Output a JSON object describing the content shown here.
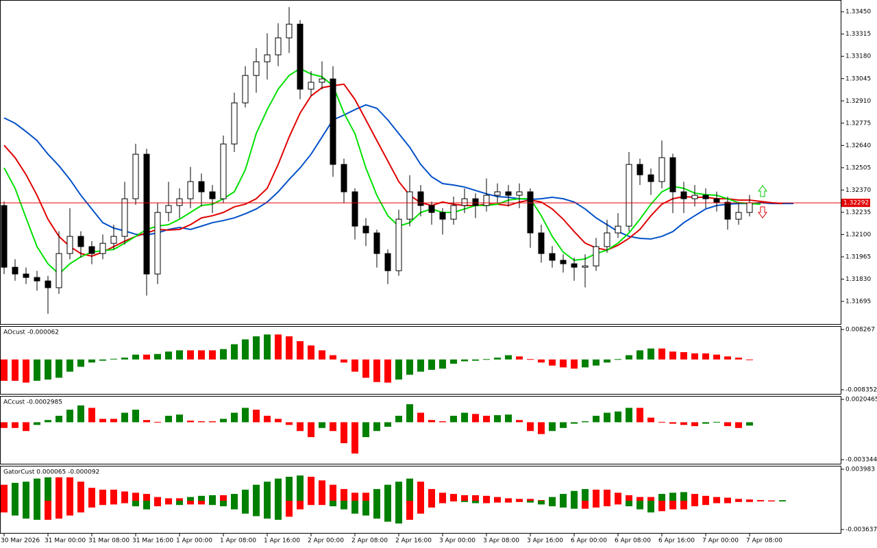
{
  "chart_data": [
    {
      "type": "candlestick",
      "categories": [
        "30 Mar 2026",
        null,
        null,
        null,
        "31 Mar 00:00",
        null,
        null,
        null,
        "31 Mar 08:00",
        null,
        null,
        null,
        "31 Mar 16:00",
        null,
        null,
        null,
        "1 Apr 00:00",
        null,
        null,
        null,
        "1 Apr 08:00",
        null,
        null,
        null,
        "1 Apr 16:00",
        null,
        null,
        null,
        "2 Apr 00:00",
        null,
        null,
        null,
        "2 Apr 08:00",
        null,
        null,
        null,
        "2 Apr 16:00",
        null,
        null,
        null,
        "3 Apr 00:00",
        null,
        null,
        null,
        "3 Apr 08:00",
        null,
        null,
        null,
        "3 Apr 16:00",
        null,
        null,
        null,
        "6 Apr 00:00",
        null,
        null,
        null,
        "6 Apr 08:00",
        null,
        null,
        null,
        "6 Apr 16:00",
        null,
        null,
        null,
        "7 Apr 00:00",
        null,
        null,
        null,
        "7 Apr 08:00",
        null,
        null,
        null,
        null
      ],
      "open": [
        1.32276,
        1.31902,
        1.31861,
        1.3184,
        1.31819,
        1.31778,
        1.31985,
        1.32089,
        1.32027,
        1.31985,
        1.32047,
        1.32089,
        1.32317,
        1.32587,
        1.31861,
        1.32234,
        1.32276,
        1.32317,
        1.32421,
        1.32359,
        1.32317,
        1.32649,
        1.32898,
        1.33064,
        1.33147,
        1.33189,
        1.33292,
        1.33375,
        1.32981,
        1.33023,
        1.33043,
        1.32525,
        1.32359,
        1.32151,
        1.3211,
        1.31985,
        1.31881,
        1.32193,
        1.32359,
        1.32276,
        1.32234,
        1.32193,
        1.32276,
        1.32317,
        1.32276,
        1.32338,
        1.32359,
        1.32338,
        1.32359,
        1.3211,
        1.31985,
        1.31944,
        1.31923,
        1.31902,
        1.3191,
        1.32027,
        1.3211,
        1.32151,
        1.32525,
        1.32462,
        1.32421,
        1.32566,
        1.32359,
        1.32317,
        1.32338,
        1.32317,
        1.32296,
        1.32193,
        1.32234,
        null,
        null,
        null,
        null
      ],
      "high": [
        1.323,
        1.3195,
        1.319,
        1.3188,
        1.3185,
        1.3212,
        1.3226,
        1.3212,
        1.3206,
        1.321,
        1.3216,
        1.3242,
        1.3265,
        1.3262,
        1.3229,
        1.3242,
        1.3238,
        1.3251,
        1.3247,
        1.324,
        1.327,
        1.3296,
        1.3312,
        1.3323,
        1.3332,
        1.3338,
        1.33479,
        1.334,
        1.3309,
        1.3315,
        1.3312,
        1.3256,
        1.3238,
        1.322,
        1.3213,
        1.3201,
        1.3225,
        1.3246,
        1.324,
        1.323,
        1.3226,
        1.3233,
        1.3238,
        1.3235,
        1.3244,
        1.3241,
        1.324,
        1.3241,
        1.3238,
        1.3216,
        1.3203,
        1.3198,
        1.3196,
        1.3198,
        1.3208,
        1.3219,
        1.3223,
        1.326,
        1.3256,
        1.325,
        1.3267,
        1.3259,
        1.3242,
        1.324,
        1.3238,
        1.3236,
        1.3233,
        1.3229,
        1.3234,
        null,
        null,
        null,
        null
      ],
      "low": [
        1.3186,
        1.3182,
        1.318,
        1.3176,
        1.3162,
        1.3174,
        1.3195,
        1.3196,
        1.3192,
        1.3195,
        1.3201,
        1.3204,
        1.3228,
        1.3173,
        1.318,
        1.3218,
        1.322,
        1.3226,
        1.3227,
        1.3223,
        1.3229,
        1.326,
        1.3287,
        1.3296,
        1.3304,
        1.3312,
        1.332,
        1.3292,
        1.3294,
        1.3298,
        1.3245,
        1.3229,
        1.3207,
        1.3203,
        1.319,
        1.318,
        1.3185,
        1.3215,
        1.3221,
        1.3216,
        1.321,
        1.3216,
        1.3223,
        1.322,
        1.3224,
        1.3229,
        1.3227,
        1.3226,
        1.3202,
        1.3193,
        1.319,
        1.3187,
        1.3182,
        1.3178,
        1.3188,
        1.3199,
        1.3208,
        1.3212,
        1.324,
        1.3234,
        1.3238,
        1.3223,
        1.3223,
        1.3227,
        1.3226,
        1.3224,
        1.3213,
        1.3216,
        1.3221,
        null,
        null,
        null,
        null
      ],
      "close": [
        1.31902,
        1.31861,
        1.3184,
        1.31819,
        1.31778,
        1.31985,
        1.32089,
        1.32027,
        1.31985,
        1.32047,
        1.32089,
        1.32317,
        1.32587,
        1.31861,
        1.32234,
        1.32276,
        1.32317,
        1.32421,
        1.32359,
        1.32317,
        1.32649,
        1.32898,
        1.33064,
        1.33147,
        1.33189,
        1.33292,
        1.33375,
        1.32981,
        1.33023,
        1.33043,
        1.32525,
        1.32359,
        1.32151,
        1.3211,
        1.31985,
        1.31881,
        1.32193,
        1.32359,
        1.32276,
        1.32234,
        1.32193,
        1.32276,
        1.32317,
        1.32276,
        1.32338,
        1.32359,
        1.32338,
        1.32359,
        1.3211,
        1.31985,
        1.31944,
        1.31923,
        1.31902,
        1.3191,
        1.32027,
        1.3211,
        1.32151,
        1.32525,
        1.32462,
        1.32421,
        1.32566,
        1.32359,
        1.32317,
        1.32338,
        1.32317,
        1.32296,
        1.32193,
        1.32234,
        1.32292,
        null,
        null,
        null,
        null
      ],
      "bull_color": "#ffffff",
      "bear_color": "#000000",
      "series": [
        {
          "color": "#0050c8",
          "values": [
            1.32807,
            1.32774,
            1.32724,
            1.3267,
            1.32587,
            1.32517,
            1.32434,
            1.32338,
            1.32255,
            1.32172,
            1.32139,
            1.32122,
            1.32102,
            1.32098,
            1.3211,
            1.32131,
            1.32143,
            1.32131,
            1.32151,
            1.32172,
            1.32185,
            1.32201,
            1.32226,
            1.32255,
            1.32297,
            1.32359,
            1.32434,
            1.32504,
            1.32587,
            1.32691,
            1.32795,
            1.32824,
            1.32857,
            1.32886,
            1.32865,
            1.32795,
            1.32712,
            1.32629,
            1.32525,
            1.3245,
            1.32409,
            1.324,
            1.32388,
            1.32367,
            1.32347,
            1.3233,
            1.32326,
            1.32317,
            1.32313,
            1.32317,
            1.32326,
            1.32317,
            1.32297,
            1.32255,
            1.32201,
            1.3216,
            1.32118,
            1.32089,
            1.32077,
            1.32073,
            1.32089,
            1.32118,
            1.32172,
            1.32214,
            1.32255,
            1.32276,
            1.32284,
            1.32288,
            1.32288,
            1.32293,
            1.32288,
            1.32288,
            1.32288
          ]
        },
        {
          "color": "#e00000",
          "values": [
            1.32641,
            1.32566,
            1.32463,
            1.32338,
            1.32193,
            1.32089,
            1.32027,
            1.31985,
            1.31969,
            1.31994,
            1.32027,
            1.3206,
            1.32089,
            1.3211,
            1.32131,
            1.32127,
            1.32131,
            1.3216,
            1.32201,
            1.32214,
            1.32234,
            1.32268,
            1.32284,
            1.32317,
            1.3238,
            1.32525,
            1.32691,
            1.32836,
            1.3294,
            1.3299,
            1.33002,
            1.33011,
            1.32919,
            1.32795,
            1.3267,
            1.32546,
            1.32421,
            1.32338,
            1.32293,
            1.32276,
            1.32297,
            1.32284,
            1.32276,
            1.32276,
            1.32284,
            1.32284,
            1.32276,
            1.32297,
            1.32309,
            1.32297,
            1.32255,
            1.32193,
            1.32118,
            1.32048,
            1.32019,
            1.32006,
            1.32035,
            1.32077,
            1.32131,
            1.32214,
            1.32284,
            1.32317,
            1.3233,
            1.32326,
            1.32326,
            1.32317,
            1.32317,
            1.32309,
            1.32309,
            1.32301,
            1.32293,
            1.32288,
            null
          ]
        },
        {
          "color": "#00e000",
          "values": [
            1.32504,
            1.3238,
            1.32201,
            1.32027,
            1.31923,
            1.31861,
            1.31923,
            1.31965,
            1.31994,
            1.32002,
            1.3201,
            1.32048,
            1.32089,
            1.32131,
            1.32151,
            1.3216,
            1.32193,
            1.32234,
            1.32276,
            1.32284,
            1.32317,
            1.32359,
            1.32492,
            1.32712,
            1.32857,
            1.32981,
            1.33064,
            1.33106,
            1.33073,
            1.33056,
            1.33002,
            1.32836,
            1.32712,
            1.32504,
            1.32338,
            1.32214,
            1.32151,
            1.32172,
            1.32234,
            1.32255,
            1.32234,
            1.32234,
            1.32255,
            1.32276,
            1.32276,
            1.32284,
            1.32309,
            1.32317,
            1.32317,
            1.32214,
            1.32089,
            1.31994,
            1.31944,
            1.31952,
            1.31985,
            1.32006,
            1.32048,
            1.3211,
            1.32193,
            1.32284,
            1.32359,
            1.32392,
            1.3238,
            1.32351,
            1.32342,
            1.32338,
            1.32317,
            1.32293,
            1.32288,
            1.32284,
            null,
            null,
            null
          ]
        }
      ],
      "last_price": 1.32292,
      "last_price_color": "#e00000",
      "ylim": [
        1.31558,
        1.33513
      ],
      "yticks": [
        {
          "value": 1.3345,
          "label": "1.33450"
        },
        1.33315,
        {
          "value": 1.3318,
          "label": "1.33180"
        },
        1.33045,
        {
          "value": 1.3291,
          "label": "1.32910"
        },
        1.32775,
        {
          "value": 1.3264,
          "label": "1.32640"
        },
        1.32505,
        {
          "value": 1.3237,
          "label": "1.32370"
        },
        1.32235,
        {
          "value": 1.321,
          "label": "1.32100"
        },
        1.31965,
        {
          "value": 1.3183,
          "label": "1.31830"
        },
        1.31695
      ]
    },
    {
      "type": "histogram",
      "title": "AOcust -0.000062",
      "up_color": "#008000",
      "down_color": "#ff0000",
      "values": [
        -0.00588,
        -0.00588,
        -0.00638,
        -0.00588,
        -0.00554,
        -0.00504,
        -0.00336,
        -0.00202,
        -0.00084,
        -0.00034,
        0.0002,
        0.0005,
        0.00134,
        0.00134,
        0.00151,
        0.00218,
        0.00252,
        0.00252,
        0.00252,
        0.00252,
        0.00286,
        0.0042,
        0.00554,
        0.00638,
        0.00689,
        0.00689,
        0.00638,
        0.00504,
        0.00386,
        0.00252,
        0.00118,
        -0.00084,
        -0.00336,
        -0.00504,
        -0.00622,
        -0.00638,
        -0.00554,
        -0.0042,
        -0.00336,
        -0.00286,
        -0.00252,
        -0.00118,
        -0.0005,
        -0.00034,
        0.0001,
        0.0005,
        0.00118,
        0.00084,
        0.0001,
        -0.00084,
        -0.00168,
        -0.00218,
        -0.00252,
        -0.00218,
        -0.00168,
        -0.00084,
        0.0001,
        0.00118,
        0.00252,
        0.00302,
        0.00302,
        0.00218,
        0.00202,
        0.00168,
        0.00168,
        0.00134,
        0.00084,
        0.0005,
        -6e-05
      ],
      "ylim": [
        -0.008352,
        0.008267
      ],
      "yticks": [
        -0.008352,
        0.008267
      ]
    },
    {
      "type": "histogram",
      "title": "ACcust -0.0002985",
      "up_color": "#008000",
      "down_color": "#ff0000",
      "values": [
        -0.000512,
        -0.000512,
        -0.000785,
        -0.00024,
        0.000196,
        0.000578,
        0.001123,
        0.001504,
        0.001286,
        0.000305,
        0.000305,
        0.00085,
        0.001123,
        0.000196,
        3.3e-05,
        0.000578,
        0.000687,
        0.000142,
        8.7e-05,
        8.7e-05,
        0.000305,
        0.00085,
        0.001286,
        0.001123,
        0.000578,
        0.000305,
        -0.00024,
        -0.000785,
        -0.00133,
        -0.000512,
        -0.000785,
        -0.001875,
        -0.0028,
        -0.00133,
        -0.000785,
        -0.000403,
        0.000578,
        0.001613,
        0.00085,
        0.000196,
        8.7e-05,
        0.000578,
        0.00085,
        0.000741,
        0.000578,
        0.000632,
        0.000687,
        0.000196,
        -0.000785,
        -0.001058,
        -0.000785,
        -0.000512,
        -0.000131,
        8.7e-05,
        0.000578,
        0.00085,
        0.000959,
        0.001286,
        0.001286,
        0.000414,
        3.3e-05,
        -0.000131,
        -0.00024,
        -0.000349,
        -0.000131,
        3.3e-05,
        -0.000349,
        -0.000512,
        -0.0002985
      ],
      "ylim": [
        -0.0033442,
        0.0020465
      ],
      "yticks": [
        -0.0033442,
        0.0020465
      ]
    },
    {
      "type": "gator",
      "title": "GatorCust 0.000065 -0.000092",
      "up_color": "#008000",
      "down_color": "#ff0000",
      "upper_values": [
        0.00202,
        0.00226,
        0.00241,
        0.0028,
        0.00296,
        0.00296,
        0.00296,
        0.00241,
        0.00163,
        0.0014,
        0.0014,
        0.00117,
        0.00101,
        0.00086,
        0.00047,
        0.00031,
        0.00031,
        0.00047,
        0.00062,
        0.0007,
        0.0007,
        0.00086,
        0.0014,
        0.00202,
        0.00241,
        0.0028,
        0.00303,
        0.00319,
        0.00303,
        0.00257,
        0.00202,
        0.00148,
        0.00101,
        0.00101,
        0.00148,
        0.00202,
        0.00241,
        0.0028,
        0.00241,
        0.00148,
        0.00101,
        0.00086,
        0.0007,
        0.0007,
        0.00062,
        0.00047,
        0.00031,
        0.00023,
        0.00023,
        8e-05,
        0.00047,
        0.00086,
        0.00124,
        0.00148,
        0.0014,
        0.0014,
        0.00101,
        0.0007,
        0.00047,
        0.00047,
        0.00086,
        0.00101,
        0.00109,
        0.00086,
        0.00062,
        0.00047,
        0.00039,
        0.00023,
        0.00016,
        8e-05,
        4e-05,
        6.5e-05,
        null
      ],
      "lower_values": [
        -0.00148,
        -0.00187,
        -0.00226,
        -0.00241,
        -0.00241,
        -0.00226,
        -0.00187,
        -0.00148,
        -0.00086,
        -0.00054,
        -0.00047,
        -0.00031,
        -0.0007,
        -0.00109,
        -0.0007,
        -0.00047,
        -0.00054,
        -0.00047,
        -0.00047,
        -0.00054,
        -0.0007,
        -0.00109,
        -0.00163,
        -0.00195,
        -0.00226,
        -0.00241,
        -0.00202,
        -0.00109,
        -0.00054,
        -0.00054,
        -0.0007,
        -0.00109,
        -0.00163,
        -0.00187,
        -0.00226,
        -0.00265,
        -0.00288,
        -0.00241,
        -0.00163,
        -0.00086,
        -0.00031,
        -8e-05,
        -0.00016,
        -0.00031,
        -0.00031,
        -0.00023,
        -0.00023,
        -0.00016,
        -0.00023,
        -0.00047,
        -0.0007,
        -0.00086,
        -0.00101,
        -0.00101,
        -0.00086,
        -0.0007,
        -0.00047,
        -0.0007,
        -0.00109,
        -0.00148,
        -0.00132,
        -0.00109,
        -0.00109,
        -0.0007,
        -0.00054,
        -0.00031,
        -0.00031,
        -0.00016,
        -0.00016,
        -8e-05,
        -8e-05,
        -9.2e-05,
        null
      ],
      "ylim": [
        -0.003637,
        0.003983
      ],
      "yticks": [
        -0.003637,
        0.003983
      ]
    }
  ]
}
